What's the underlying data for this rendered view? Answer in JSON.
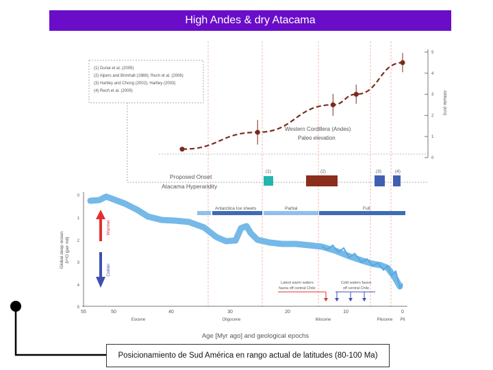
{
  "slide_title": "High Andes & dry Atacama",
  "caption": "Posicionamiento de Sud América en rango actual de latitudes (80-100 Ma)",
  "colors": {
    "title_bg": "#6a0dc8",
    "elevation": "#7b2a1e",
    "isotope": "#6fb6e6",
    "ice_bar": "#3f6cb5"
  },
  "legend_refs": [
    "(1) Dunai et al. (2005)",
    "(2) Alpers and Brimhall (1988); Rech et al. (2006)",
    "(3) Hartley and Chong (2002); Hartley (2003)",
    "(4) Rech et al. (2009)"
  ],
  "elevation": {
    "label1": "Western Cordillera (Andes)",
    "label2": "Paleo elevation",
    "axis_label": "Altitude (km)"
  },
  "onset": {
    "label1": "Proposed Onset",
    "label2": "Atacama Hyperaridity",
    "markers": [
      "(1)",
      "(2)",
      "(3)",
      "(4)"
    ]
  },
  "ice": {
    "antarctic": "Antarctica Ice sheets",
    "partial": "Partial",
    "full": "Full"
  },
  "isotope": {
    "axis_label1": "Global deep ocean",
    "axis_label2": "δ¹⁸O (per mil)",
    "warmer": "Warmer",
    "colder": "Colder"
  },
  "annotations": {
    "warm_waters": [
      "Latest warm waters",
      "fauna off central Chile"
    ],
    "cold_waters": [
      "Cold waters fauna",
      "off central Chile"
    ]
  },
  "age_axis": {
    "title": "Age [Myr ago] and geological epochs",
    "ticks": [
      "55",
      "50",
      "40",
      "30",
      "20",
      "10",
      "0"
    ],
    "epochs": [
      "Eocene",
      "Oligocene",
      "Miocene",
      "Pliocene",
      "Plt"
    ]
  },
  "chart_data": {
    "type": "line",
    "series": [
      {
        "name": "Western Cordillera (Andes) Paleo elevation",
        "x": [
          38,
          25,
          12,
          8,
          0
        ],
        "y": [
          0.4,
          1.2,
          2.5,
          3.0,
          4.5
        ]
      }
    ],
    "xlabel": "Age [Myr ago] and geological epochs",
    "ylabel": "Altitude (km)",
    "xlim": [
      55,
      0
    ],
    "y_ticks": [
      "0",
      "1",
      "2",
      "3",
      "4",
      "5"
    ]
  }
}
